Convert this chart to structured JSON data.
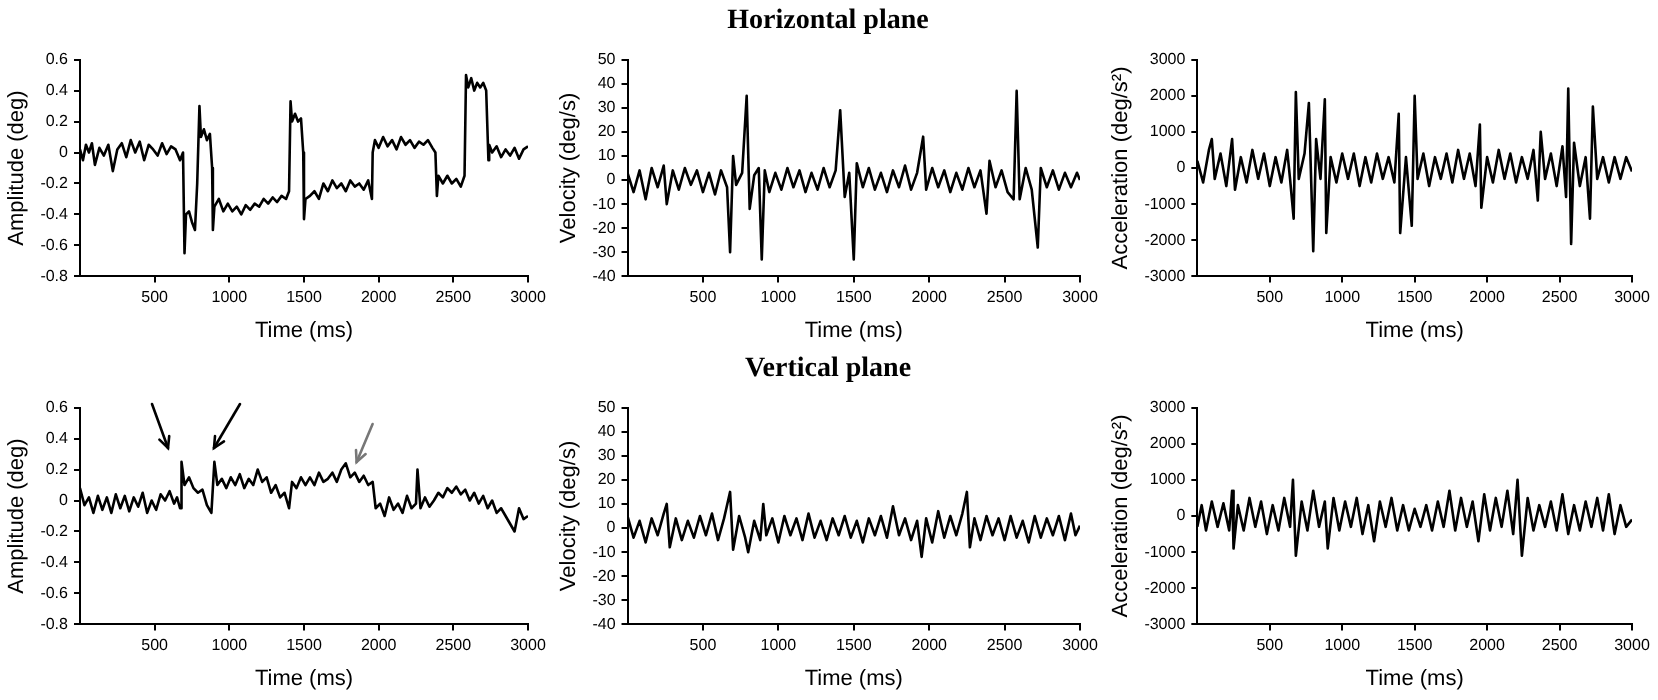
{
  "chart_data": [
    {
      "type": "line",
      "xlabel": "Time (ms)",
      "ylabel": "Amplitude (deg)",
      "xlim": [
        0,
        3000
      ],
      "xticks": [
        500,
        1000,
        1500,
        2000,
        2500,
        3000
      ],
      "ylim": [
        -0.8,
        0.6
      ],
      "yticks": [
        -0.8,
        -0.6,
        -0.4,
        -0.2,
        0,
        0.2,
        0.4,
        0.6
      ],
      "grid": false,
      "x": [
        0,
        20,
        40,
        60,
        80,
        100,
        130,
        160,
        190,
        220,
        250,
        280,
        310,
        340,
        370,
        400,
        430,
        460,
        490,
        520,
        550,
        580,
        610,
        640,
        670,
        690,
        700,
        710,
        730,
        750,
        770,
        785,
        800,
        810,
        830,
        850,
        870,
        885,
        890,
        900,
        930,
        960,
        990,
        1020,
        1050,
        1080,
        1110,
        1140,
        1170,
        1200,
        1230,
        1260,
        1290,
        1320,
        1350,
        1380,
        1400,
        1410,
        1420,
        1440,
        1460,
        1480,
        1495,
        1500,
        1510,
        1540,
        1570,
        1600,
        1630,
        1660,
        1690,
        1720,
        1750,
        1780,
        1810,
        1840,
        1870,
        1900,
        1930,
        1955,
        1960,
        1975,
        2000,
        2030,
        2060,
        2090,
        2120,
        2150,
        2180,
        2210,
        2240,
        2270,
        2300,
        2330,
        2360,
        2380,
        2390,
        2400,
        2430,
        2460,
        2490,
        2520,
        2550,
        2575,
        2585,
        2600,
        2620,
        2640,
        2660,
        2680,
        2700,
        2720,
        2735,
        2740,
        2760,
        2790,
        2820,
        2850,
        2880,
        2910,
        2940,
        2970,
        3000
      ],
      "series": [
        {
          "color": "#000000",
          "values": [
            0.02,
            -0.05,
            0.05,
            0.0,
            0.06,
            -0.08,
            0.03,
            -0.02,
            0.05,
            -0.12,
            0.02,
            0.06,
            -0.03,
            0.08,
            0.0,
            0.07,
            -0.05,
            0.05,
            0.02,
            -0.02,
            0.06,
            -0.01,
            0.04,
            0.02,
            -0.05,
            0.0,
            -0.65,
            -0.4,
            -0.38,
            -0.45,
            -0.5,
            -0.2,
            0.3,
            0.1,
            0.15,
            0.08,
            0.12,
            -0.1,
            -0.5,
            -0.35,
            -0.3,
            -0.38,
            -0.33,
            -0.38,
            -0.35,
            -0.4,
            -0.34,
            -0.37,
            -0.33,
            -0.35,
            -0.3,
            -0.33,
            -0.29,
            -0.32,
            -0.28,
            -0.3,
            -0.25,
            0.33,
            0.2,
            0.25,
            0.2,
            0.22,
            0.0,
            -0.43,
            -0.3,
            -0.28,
            -0.25,
            -0.3,
            -0.2,
            -0.25,
            -0.18,
            -0.23,
            -0.2,
            -0.25,
            -0.18,
            -0.22,
            -0.2,
            -0.24,
            -0.18,
            -0.3,
            0.0,
            0.08,
            0.03,
            0.1,
            0.04,
            0.08,
            0.02,
            0.1,
            0.05,
            0.08,
            0.03,
            0.07,
            0.05,
            0.08,
            0.03,
            0.0,
            -0.28,
            -0.15,
            -0.2,
            -0.15,
            -0.2,
            -0.17,
            -0.22,
            -0.15,
            0.5,
            0.42,
            0.48,
            0.4,
            0.45,
            0.42,
            0.45,
            0.4,
            -0.05,
            0.05,
            0.0,
            0.04,
            -0.03,
            0.02,
            -0.02,
            0.03,
            -0.04,
            0.02,
            0.04
          ]
        }
      ]
    },
    {
      "type": "line",
      "title": "Horizontal plane",
      "xlabel": "Time (ms)",
      "ylabel": "Velocity (deg/s)",
      "xlim": [
        0,
        3000
      ],
      "xticks": [
        500,
        1000,
        1500,
        2000,
        2500,
        3000
      ],
      "ylim": [
        -40,
        50
      ],
      "yticks": [
        -40,
        -30,
        -20,
        -10,
        0,
        10,
        20,
        30,
        40,
        50
      ],
      "grid": false,
      "x": [
        0,
        40,
        80,
        120,
        160,
        200,
        240,
        260,
        300,
        340,
        380,
        420,
        460,
        500,
        540,
        580,
        620,
        660,
        680,
        700,
        720,
        760,
        790,
        810,
        840,
        870,
        890,
        910,
        940,
        980,
        1020,
        1060,
        1100,
        1140,
        1180,
        1220,
        1260,
        1300,
        1340,
        1380,
        1410,
        1440,
        1470,
        1500,
        1520,
        1560,
        1600,
        1640,
        1680,
        1720,
        1760,
        1800,
        1840,
        1880,
        1920,
        1960,
        1980,
        2020,
        2060,
        2100,
        2140,
        2180,
        2220,
        2260,
        2300,
        2340,
        2380,
        2400,
        2440,
        2480,
        2520,
        2560,
        2580,
        2600,
        2640,
        2680,
        2720,
        2740,
        2780,
        2820,
        2860,
        2900,
        2940,
        2980,
        3000
      ],
      "series": [
        {
          "color": "#000000",
          "values": [
            3,
            -5,
            4,
            -8,
            5,
            -3,
            6,
            -10,
            4,
            -4,
            5,
            -2,
            4,
            -5,
            3,
            -6,
            4,
            -3,
            -30,
            10,
            -2,
            3,
            35,
            -12,
            2,
            5,
            -33,
            4,
            -5,
            3,
            -4,
            5,
            -3,
            4,
            -5,
            3,
            -4,
            5,
            -3,
            4,
            29,
            -7,
            3,
            -33,
            7,
            -3,
            5,
            -4,
            3,
            -5,
            4,
            -3,
            6,
            -4,
            3,
            18,
            -4,
            5,
            -3,
            4,
            -5,
            3,
            -4,
            5,
            -3,
            4,
            -14,
            8,
            -3,
            4,
            -5,
            -8,
            37,
            -8,
            5,
            -4,
            -28,
            5,
            -3,
            4,
            -4,
            3,
            -3,
            3,
            0
          ]
        }
      ]
    },
    {
      "type": "line",
      "xlabel": "Time (ms)",
      "ylabel": "Acceleration (deg/s²)",
      "xlim": [
        0,
        3000
      ],
      "xticks": [
        500,
        1000,
        1500,
        2000,
        2500,
        3000
      ],
      "ylim": [
        -3000,
        3000
      ],
      "yticks": [
        -3000,
        -2000,
        -1000,
        0,
        1000,
        2000,
        3000
      ],
      "grid": false,
      "x": [
        0,
        40,
        80,
        100,
        120,
        160,
        200,
        240,
        260,
        300,
        340,
        380,
        420,
        460,
        500,
        540,
        580,
        620,
        640,
        665,
        680,
        700,
        740,
        770,
        800,
        820,
        850,
        880,
        890,
        920,
        960,
        1000,
        1040,
        1080,
        1120,
        1160,
        1200,
        1240,
        1280,
        1320,
        1360,
        1390,
        1400,
        1440,
        1480,
        1500,
        1520,
        1560,
        1600,
        1640,
        1680,
        1720,
        1760,
        1800,
        1840,
        1880,
        1920,
        1950,
        1960,
        2000,
        2040,
        2080,
        2120,
        2160,
        2200,
        2240,
        2280,
        2320,
        2350,
        2370,
        2400,
        2440,
        2480,
        2520,
        2545,
        2560,
        2580,
        2600,
        2640,
        2680,
        2710,
        2730,
        2760,
        2800,
        2840,
        2880,
        2920,
        2960,
        3000
      ],
      "series": [
        {
          "color": "#000000",
          "values": [
            200,
            -400,
            500,
            800,
            -300,
            400,
            -500,
            800,
            -600,
            300,
            -400,
            500,
            -300,
            400,
            -500,
            300,
            -400,
            500,
            -300,
            -1400,
            2100,
            -300,
            400,
            1800,
            -2300,
            800,
            -300,
            1900,
            -1800,
            300,
            -400,
            400,
            -300,
            400,
            -500,
            300,
            -400,
            400,
            -300,
            300,
            -400,
            1500,
            -1800,
            300,
            -1600,
            2000,
            -300,
            400,
            -500,
            300,
            -300,
            400,
            -400,
            500,
            -300,
            400,
            -500,
            1200,
            -1100,
            300,
            -400,
            500,
            -300,
            400,
            -400,
            300,
            -300,
            500,
            -900,
            1000,
            -300,
            400,
            -500,
            600,
            -800,
            2200,
            -2100,
            700,
            -500,
            300,
            -1400,
            1700,
            -300,
            300,
            -400,
            300,
            -300,
            300,
            -100
          ]
        }
      ]
    },
    {
      "type": "line",
      "xlabel": "Time (ms)",
      "ylabel": "Amplitude (deg)",
      "xlim": [
        0,
        3000
      ],
      "xticks": [
        500,
        1000,
        1500,
        2000,
        2500,
        3000
      ],
      "ylim": [
        -0.8,
        0.6
      ],
      "yticks": [
        -0.8,
        -0.6,
        -0.4,
        -0.2,
        0,
        0.2,
        0.4,
        0.6
      ],
      "grid": false,
      "x": [
        0,
        30,
        60,
        90,
        120,
        150,
        180,
        210,
        240,
        270,
        300,
        330,
        360,
        390,
        420,
        450,
        480,
        510,
        540,
        570,
        600,
        630,
        650,
        670,
        680,
        700,
        730,
        760,
        790,
        820,
        850,
        880,
        900,
        920,
        950,
        980,
        1010,
        1040,
        1070,
        1100,
        1130,
        1160,
        1190,
        1220,
        1250,
        1280,
        1310,
        1340,
        1370,
        1400,
        1420,
        1450,
        1480,
        1510,
        1540,
        1570,
        1600,
        1630,
        1660,
        1690,
        1720,
        1750,
        1780,
        1810,
        1840,
        1870,
        1900,
        1930,
        1960,
        1980,
        2010,
        2040,
        2070,
        2100,
        2130,
        2160,
        2190,
        2220,
        2250,
        2260,
        2280,
        2310,
        2340,
        2370,
        2400,
        2430,
        2460,
        2490,
        2520,
        2550,
        2580,
        2610,
        2640,
        2670,
        2700,
        2730,
        2760,
        2790,
        2820,
        2850,
        2880,
        2910,
        2940,
        2970,
        3000
      ],
      "series": [
        {
          "color": "#000000",
          "values": [
            0.08,
            -0.03,
            0.02,
            -0.08,
            0.03,
            -0.06,
            0.02,
            -0.08,
            0.04,
            -0.05,
            0.03,
            -0.07,
            0.02,
            -0.04,
            0.05,
            -0.08,
            0.0,
            -0.06,
            0.04,
            0.0,
            0.06,
            -0.02,
            0.02,
            -0.05,
            0.25,
            0.1,
            0.15,
            0.08,
            0.05,
            0.07,
            -0.03,
            -0.08,
            0.25,
            0.1,
            0.14,
            0.08,
            0.15,
            0.1,
            0.17,
            0.08,
            0.14,
            0.1,
            0.2,
            0.12,
            0.15,
            0.05,
            0.1,
            0.02,
            0.05,
            -0.05,
            0.12,
            0.08,
            0.15,
            0.1,
            0.15,
            0.1,
            0.18,
            0.12,
            0.14,
            0.18,
            0.12,
            0.2,
            0.24,
            0.15,
            0.18,
            0.12,
            0.16,
            0.1,
            0.12,
            -0.05,
            -0.02,
            -0.1,
            0.02,
            -0.06,
            -0.02,
            -0.08,
            0.03,
            -0.05,
            -0.02,
            0.2,
            -0.05,
            0.02,
            -0.04,
            0.0,
            0.05,
            0.02,
            0.08,
            0.05,
            0.09,
            0.04,
            0.07,
            0.0,
            0.05,
            -0.02,
            0.03,
            -0.05,
            0.0,
            -0.08,
            -0.05,
            -0.1,
            -0.15,
            -0.2,
            -0.05,
            -0.12,
            -0.1
          ]
        }
      ]
    },
    {
      "type": "line",
      "title": "Vertical plane",
      "xlabel": "Time (ms)",
      "ylabel": "Velocity (deg/s)",
      "xlim": [
        0,
        3000
      ],
      "xticks": [
        500,
        1000,
        1500,
        2000,
        2500,
        3000
      ],
      "ylim": [
        -40,
        50
      ],
      "yticks": [
        -40,
        -30,
        -20,
        -10,
        0,
        10,
        20,
        30,
        40,
        50
      ],
      "grid": false,
      "x": [
        0,
        40,
        80,
        120,
        160,
        200,
        240,
        260,
        280,
        320,
        360,
        400,
        440,
        480,
        520,
        560,
        600,
        640,
        680,
        700,
        740,
        780,
        800,
        840,
        880,
        900,
        920,
        960,
        1000,
        1040,
        1080,
        1120,
        1160,
        1200,
        1240,
        1280,
        1320,
        1360,
        1400,
        1440,
        1480,
        1520,
        1560,
        1600,
        1640,
        1680,
        1720,
        1760,
        1800,
        1840,
        1880,
        1920,
        1950,
        1980,
        2020,
        2060,
        2100,
        2140,
        2180,
        2220,
        2250,
        2270,
        2300,
        2340,
        2380,
        2420,
        2460,
        2500,
        2540,
        2580,
        2620,
        2660,
        2700,
        2740,
        2780,
        2820,
        2860,
        2900,
        2940,
        2970,
        3000
      ],
      "series": [
        {
          "color": "#000000",
          "values": [
            5,
            -4,
            3,
            -6,
            4,
            -3,
            6,
            10,
            -8,
            4,
            -5,
            3,
            -4,
            5,
            -3,
            6,
            -5,
            4,
            15,
            -9,
            5,
            -4,
            -10,
            3,
            -5,
            10,
            -3,
            4,
            -6,
            5,
            -3,
            4,
            -5,
            6,
            -4,
            3,
            -5,
            4,
            -3,
            5,
            -4,
            3,
            -6,
            4,
            -3,
            5,
            -4,
            9,
            -3,
            4,
            -5,
            3,
            -12,
            4,
            -6,
            7,
            -4,
            5,
            -3,
            6,
            15,
            -8,
            4,
            -5,
            5,
            -3,
            4,
            -5,
            5,
            -4,
            3,
            -6,
            5,
            -4,
            4,
            -3,
            5,
            -5,
            6,
            -3,
            1
          ]
        }
      ]
    },
    {
      "type": "line",
      "xlabel": "Time (ms)",
      "ylabel": "Acceleration (deg/s²)",
      "xlim": [
        0,
        3000
      ],
      "xticks": [
        500,
        1000,
        1500,
        2000,
        2500,
        3000
      ],
      "ylim": [
        -3000,
        3000
      ],
      "yticks": [
        -3000,
        -2000,
        -1000,
        0,
        1000,
        2000,
        3000
      ],
      "grid": false,
      "x": [
        0,
        30,
        60,
        100,
        140,
        180,
        220,
        240,
        250,
        280,
        320,
        360,
        400,
        440,
        480,
        520,
        560,
        600,
        640,
        660,
        680,
        720,
        760,
        800,
        840,
        880,
        900,
        940,
        980,
        1020,
        1060,
        1100,
        1140,
        1180,
        1220,
        1260,
        1300,
        1340,
        1380,
        1420,
        1460,
        1500,
        1540,
        1580,
        1620,
        1660,
        1700,
        1740,
        1780,
        1820,
        1860,
        1900,
        1940,
        1980,
        2020,
        2060,
        2100,
        2140,
        2180,
        2210,
        2240,
        2280,
        2320,
        2360,
        2400,
        2440,
        2480,
        2520,
        2560,
        2600,
        2640,
        2680,
        2720,
        2760,
        2800,
        2840,
        2880,
        2920,
        2960,
        3000
      ],
      "series": [
        {
          "color": "#000000",
          "values": [
            -300,
            300,
            -400,
            400,
            -300,
            350,
            -400,
            700,
            -900,
            300,
            -400,
            500,
            -300,
            400,
            -500,
            300,
            -400,
            500,
            -300,
            1000,
            -1100,
            400,
            -400,
            700,
            -300,
            400,
            -900,
            500,
            -400,
            400,
            -300,
            500,
            -500,
            300,
            -700,
            400,
            -300,
            500,
            -400,
            300,
            -400,
            200,
            -300,
            300,
            -400,
            400,
            -300,
            700,
            -400,
            500,
            -300,
            400,
            -700,
            600,
            -400,
            500,
            -300,
            700,
            -500,
            1000,
            -1100,
            500,
            -400,
            300,
            -300,
            400,
            -400,
            600,
            -500,
            300,
            -400,
            400,
            -300,
            500,
            -400,
            600,
            -500,
            300,
            -300,
            -100
          ]
        }
      ]
    }
  ]
}
